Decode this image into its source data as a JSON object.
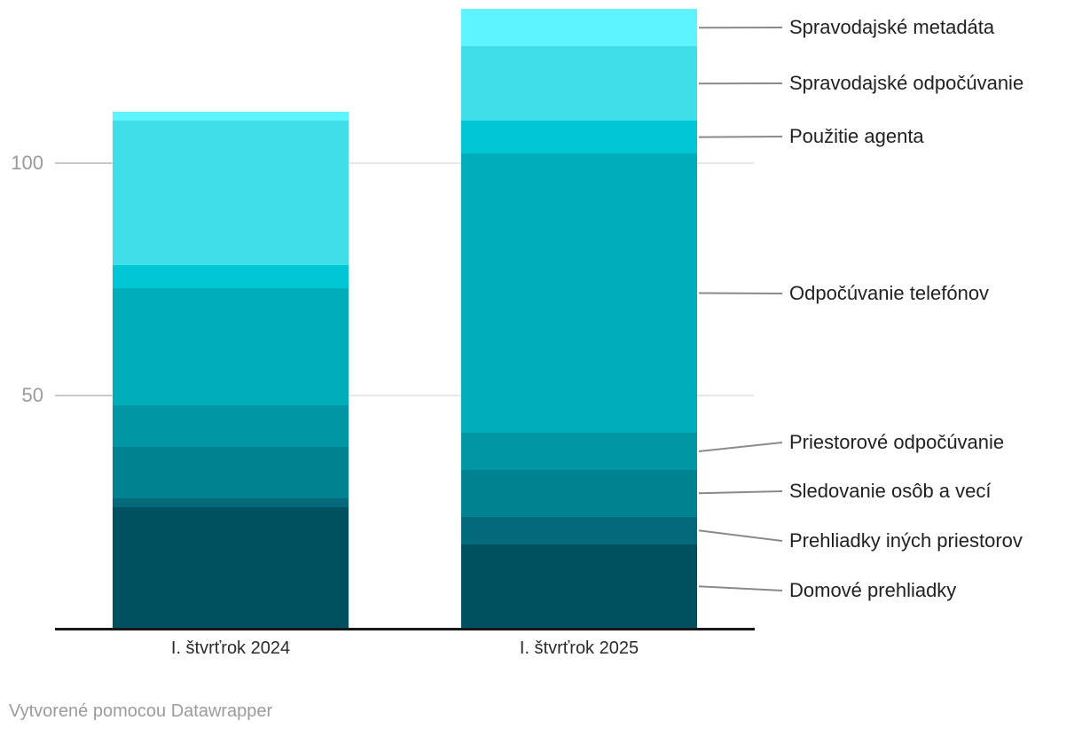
{
  "footer": {
    "attribution": "Vytvorené pomocou Datawrapper"
  },
  "chart_data": {
    "type": "bar",
    "stacked": true,
    "orientation": "vertical",
    "grid": "horizontal",
    "legend_position": "right-annotations",
    "categories": [
      "I. štvrťrok 2024",
      "I. štvrťrok 2025"
    ],
    "series": [
      {
        "name": "Spravodajské metadáta",
        "color": "#5ef3ff",
        "values": [
          2,
          8
        ]
      },
      {
        "name": "Spravodajské odpočúvanie",
        "color": "#3fdee9",
        "values": [
          31,
          16
        ]
      },
      {
        "name": "Použitie agenta",
        "color": "#00c5d4",
        "values": [
          5,
          7
        ]
      },
      {
        "name": "Odpočúvanie telefónov",
        "color": "#00adbb",
        "values": [
          25,
          60
        ]
      },
      {
        "name": "Priestorové odpočúvanie",
        "color": "#0096a4",
        "values": [
          9,
          8
        ]
      },
      {
        "name": "Sledovanie osôb a vecí",
        "color": "#008290",
        "values": [
          11,
          10
        ]
      },
      {
        "name": "Prehliadky iných priestorov",
        "color": "#04697a",
        "values": [
          2,
          6
        ]
      },
      {
        "name": "Domové prehliadky",
        "color": "#00515f",
        "values": [
          26,
          18
        ]
      }
    ],
    "totals": [
      111,
      133
    ],
    "yticks": [
      50,
      100
    ],
    "ylim": [
      0,
      133
    ],
    "colors": {
      "gridline": "#e7e7e7",
      "axis_line": "#181818",
      "connector_line": "#8a8a8a",
      "tick_label": "#9a9a9a",
      "category_label": "#2a2a2a",
      "legend_label": "#212121"
    }
  }
}
